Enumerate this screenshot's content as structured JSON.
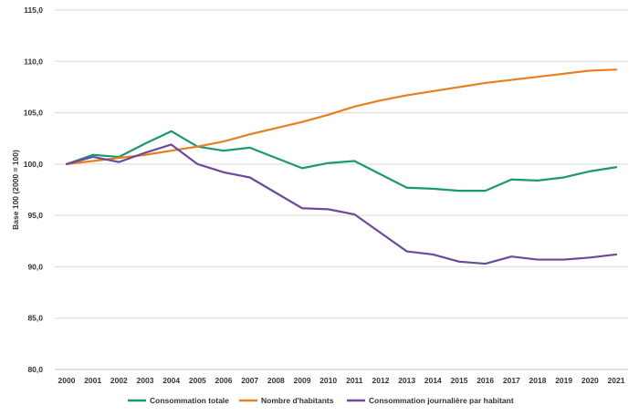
{
  "chart_data": {
    "type": "line",
    "title": "",
    "xlabel": "",
    "ylabel": "Base 100 (2000 = 100)",
    "ylim": [
      80,
      115
    ],
    "yticks": [
      80,
      85,
      90,
      95,
      100,
      105,
      110,
      115
    ],
    "ytick_labels": [
      "80,0",
      "85,0",
      "90,0",
      "95,0",
      "100,0",
      "105,0",
      "110,0",
      "115,0"
    ],
    "grid": "horizontal",
    "legend_position": "bottom",
    "categories": [
      "2000",
      "2001",
      "2002",
      "2003",
      "2004",
      "2005",
      "2006",
      "2007",
      "2008",
      "2009",
      "2010",
      "2011",
      "2012",
      "2013",
      "2014",
      "2015",
      "2016",
      "2017",
      "2018",
      "2019",
      "2020",
      "2021"
    ],
    "series": [
      {
        "name": "Consommation totale",
        "color": "#1a9873",
        "values": [
          100.0,
          100.9,
          100.7,
          102.0,
          103.2,
          101.7,
          101.3,
          101.6,
          100.6,
          99.6,
          100.1,
          100.3,
          99.0,
          97.7,
          97.6,
          97.4,
          97.4,
          98.5,
          98.4,
          98.7,
          99.3,
          99.7
        ]
      },
      {
        "name": "Nombre d'habitants",
        "color": "#e87e1e",
        "values": [
          100.0,
          100.3,
          100.6,
          100.9,
          101.3,
          101.7,
          102.2,
          102.9,
          103.5,
          104.1,
          104.8,
          105.6,
          106.2,
          106.7,
          107.1,
          107.5,
          107.9,
          108.2,
          108.5,
          108.8,
          109.1,
          109.2
        ]
      },
      {
        "name": "Consommation journalière par habitant",
        "color": "#6c4a9a",
        "values": [
          100.0,
          100.7,
          100.2,
          101.1,
          101.9,
          100.0,
          99.2,
          98.7,
          97.2,
          95.7,
          95.6,
          95.1,
          93.3,
          91.5,
          91.2,
          90.5,
          90.3,
          91.0,
          90.7,
          90.7,
          90.9,
          91.2
        ]
      }
    ]
  }
}
